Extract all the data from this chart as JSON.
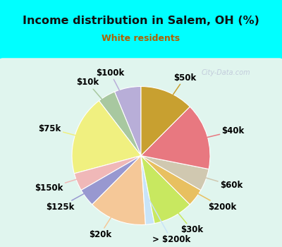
{
  "title": "Income distribution in Salem, OH (%)",
  "subtitle": "White residents",
  "title_color": "#111111",
  "subtitle_color": "#b06000",
  "background_outer": "#00ffff",
  "background_inner_top": "#e0f8f0",
  "background_inner_bot": "#d0f0e8",
  "watermark": "City-Data.com",
  "slices": [
    {
      "label": "$100k",
      "value": 6,
      "color": "#b8aed8"
    },
    {
      "label": "$10k",
      "value": 4,
      "color": "#a8c8a0"
    },
    {
      "label": "$75k",
      "value": 18,
      "color": "#f0f080"
    },
    {
      "label": "$150k",
      "value": 4,
      "color": "#f0b8b8"
    },
    {
      "label": "$125k",
      "value": 4,
      "color": "#9898d0"
    },
    {
      "label": "$20k",
      "value": 13,
      "color": "#f5c898"
    },
    {
      "label": "> $200k",
      "value": 2,
      "color": "#c8e4f8"
    },
    {
      "label": "$30k",
      "value": 9,
      "color": "#c8e860"
    },
    {
      "label": "$200k",
      "value": 4,
      "color": "#e8c060"
    },
    {
      "label": "$60k",
      "value": 5,
      "color": "#d0c8b0"
    },
    {
      "label": "$40k",
      "value": 15,
      "color": "#e87880"
    },
    {
      "label": "$50k",
      "value": 12,
      "color": "#c8a030"
    }
  ],
  "label_fontsize": 8.5,
  "label_color": "#000000",
  "figsize": [
    4.0,
    3.5
  ],
  "dpi": 100
}
